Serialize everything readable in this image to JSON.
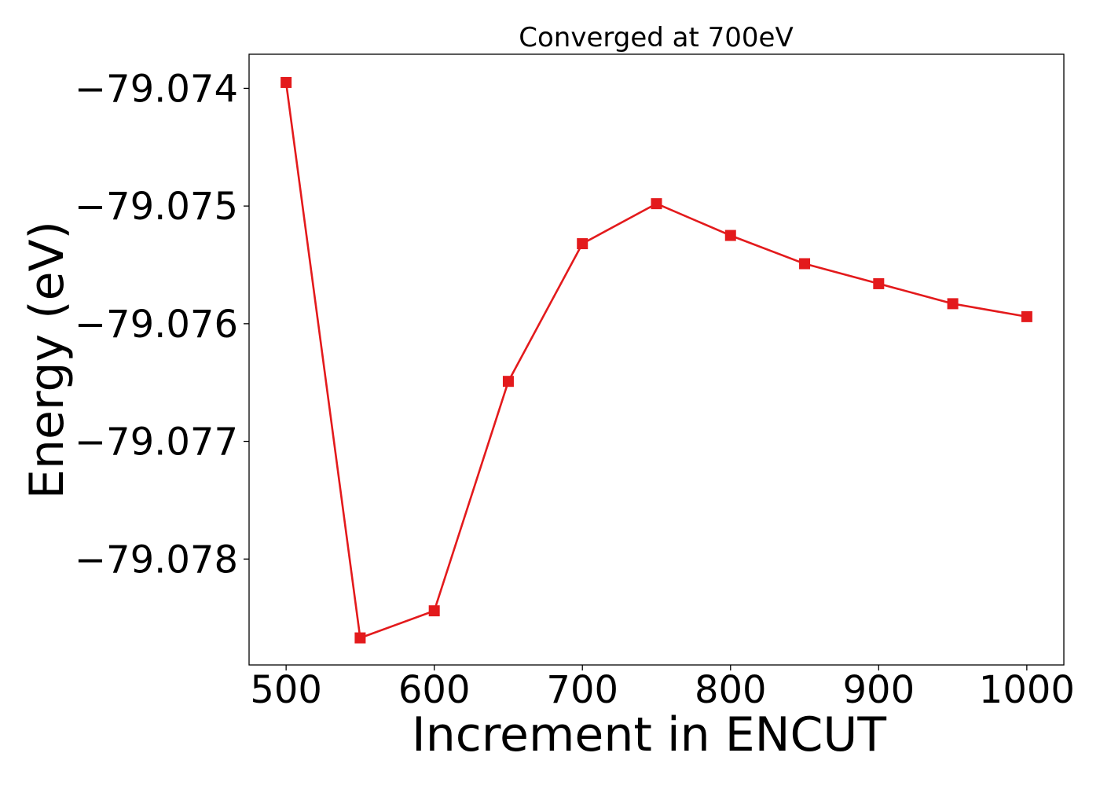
{
  "chart_data": {
    "type": "line",
    "title": "Converged at 700eV",
    "xlabel": "Increment in ENCUT",
    "ylabel": "Energy (eV)",
    "x": [
      500,
      550,
      600,
      650,
      700,
      750,
      800,
      850,
      900,
      950,
      1000
    ],
    "series": [
      {
        "values": [
          -79.07395,
          -79.07867,
          -79.07844,
          -79.07649,
          -79.07532,
          -79.07498,
          -79.07525,
          -79.07549,
          -79.07566,
          -79.07583,
          -79.07594
        ],
        "color": "#e31a1c",
        "marker": "square"
      }
    ],
    "xlim": [
      475,
      1025
    ],
    "ylim": [
      -79.0789,
      -79.07371
    ],
    "xticks": [
      500,
      600,
      700,
      800,
      900,
      1000
    ],
    "xtick_labels": [
      "500",
      "600",
      "700",
      "800",
      "900",
      "1000"
    ],
    "yticks": [
      -79.074,
      -79.075,
      -79.076,
      -79.077,
      -79.078
    ],
    "ytick_labels": [
      "−79.074",
      "−79.075",
      "−79.076",
      "−79.077",
      "−79.078"
    ],
    "grid": false,
    "legend": "none"
  }
}
